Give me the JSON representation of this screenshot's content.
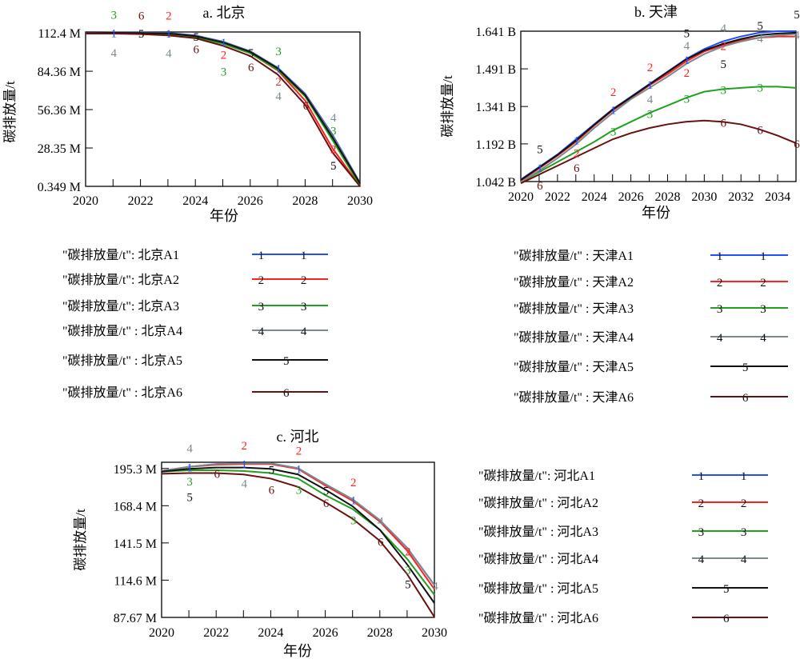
{
  "colors": {
    "A1": "#1f4fff",
    "A2": "#ff2020",
    "A3": "#22a020",
    "A4": "#7a8a90",
    "A5": "#111111",
    "A6": "#6b1010"
  },
  "chart_data": [
    {
      "type": "line",
      "title": "a. 北京",
      "xlabel": "年份",
      "ylabel": "碳排放量/t",
      "x": [
        2020,
        2021,
        2022,
        2023,
        2024,
        2025,
        2026,
        2027,
        2028,
        2029,
        2030
      ],
      "xticks": [
        2020,
        2022,
        2024,
        2026,
        2028,
        2030
      ],
      "xtick_labels": [
        "2020",
        "2022",
        "2024",
        "2026",
        "2028",
        "2030"
      ],
      "yticks": [
        0.349,
        28.35,
        56.36,
        84.36,
        112.4
      ],
      "ytick_labels": [
        "0.349 M",
        "28.35 M",
        "56.36 M",
        "84.36 M",
        "112.4 M"
      ],
      "ylim": [
        0.349,
        113
      ],
      "xlim": [
        2020,
        2030
      ],
      "unit": "M",
      "series": [
        {
          "key": "A1",
          "name": "\"碳排放量/t\": 北京A1",
          "values": [
            112.4,
            112.6,
            112.6,
            112.4,
            110.5,
            106,
            99,
            87,
            68,
            38,
            3
          ]
        },
        {
          "key": "A2",
          "name": "\"碳排放量/t\": 北京A2",
          "values": [
            112,
            112.3,
            112.2,
            111.5,
            109.5,
            104.5,
            97.5,
            85,
            63,
            28,
            0.35
          ]
        },
        {
          "key": "A3",
          "name": "\"碳排放量/t\": 北京A3",
          "values": [
            112,
            112.2,
            112,
            111.5,
            109,
            104.5,
            97.5,
            85.5,
            66,
            34,
            1
          ]
        },
        {
          "key": "A4",
          "name": "\"碳排放量/t\" : 北京A4",
          "values": [
            112.3,
            112.5,
            112.5,
            112.2,
            110.2,
            105.8,
            98.8,
            86.8,
            67.5,
            37,
            2.8
          ]
        },
        {
          "key": "A5",
          "name": "\"碳排放量/t\" : 北京A5",
          "values": [
            112.2,
            112.4,
            112.3,
            112,
            110,
            105.5,
            98.5,
            86.5,
            67,
            36,
            2.5
          ]
        },
        {
          "key": "A6",
          "name": "\"碳排放量/t\" : 北京A6",
          "values": [
            111.8,
            111.8,
            111.5,
            110.5,
            108.5,
            103,
            95.5,
            82,
            60,
            25,
            0.35
          ]
        }
      ]
    },
    {
      "type": "line",
      "title": "b. 天津",
      "xlabel": "年份",
      "ylabel": "碳排放量/t",
      "x": [
        2020,
        2021,
        2022,
        2023,
        2024,
        2025,
        2026,
        2027,
        2028,
        2029,
        2030,
        2031,
        2032,
        2033,
        2034,
        2035
      ],
      "xticks": [
        2020,
        2022,
        2024,
        2026,
        2028,
        2030,
        2032,
        2034
      ],
      "xtick_labels": [
        "2020",
        "2022",
        "2024",
        "2026",
        "2028",
        "2030",
        "2032",
        "2034"
      ],
      "yticks": [
        1.042,
        1.192,
        1.341,
        1.491,
        1.641
      ],
      "ytick_labels": [
        "1.042 B",
        "1.192 B",
        "1.341 B",
        "1.491 B",
        "1.641 B"
      ],
      "ylim": [
        1.042,
        1.641
      ],
      "xlim": [
        2020,
        2035
      ],
      "unit": "B",
      "series": [
        {
          "key": "A1",
          "name": "\"碳排放量/t\" :  天津A1",
          "values": [
            1.05,
            1.1,
            1.15,
            1.21,
            1.27,
            1.33,
            1.38,
            1.43,
            1.48,
            1.53,
            1.57,
            1.6,
            1.62,
            1.635,
            1.641,
            1.641
          ]
        },
        {
          "key": "A2",
          "name": "\"碳排放量/t\" :  天津A2",
          "values": [
            1.045,
            1.095,
            1.145,
            1.2,
            1.265,
            1.325,
            1.375,
            1.425,
            1.47,
            1.52,
            1.56,
            1.585,
            1.605,
            1.615,
            1.62,
            1.62
          ]
        },
        {
          "key": "A3",
          "name": "\"碳排放量/t\" :  天津A3",
          "values": [
            1.04,
            1.08,
            1.12,
            1.16,
            1.2,
            1.245,
            1.28,
            1.315,
            1.345,
            1.375,
            1.4,
            1.41,
            1.415,
            1.42,
            1.42,
            1.415
          ]
        },
        {
          "key": "A4",
          "name": "\"碳排放量/t\" :  天津A4",
          "values": [
            1.04,
            1.085,
            1.135,
            1.19,
            1.255,
            1.315,
            1.37,
            1.415,
            1.46,
            1.51,
            1.55,
            1.58,
            1.6,
            1.615,
            1.625,
            1.63
          ]
        },
        {
          "key": "A5",
          "name": "\"碳排放量/t\" :  天津A5",
          "values": [
            1.048,
            1.098,
            1.148,
            1.205,
            1.268,
            1.328,
            1.378,
            1.428,
            1.478,
            1.528,
            1.565,
            1.59,
            1.61,
            1.625,
            1.632,
            1.635
          ]
        },
        {
          "key": "A6",
          "name": "\"碳排放量/t\" :  天津A6",
          "values": [
            1.035,
            1.07,
            1.105,
            1.14,
            1.175,
            1.21,
            1.235,
            1.255,
            1.27,
            1.28,
            1.285,
            1.28,
            1.27,
            1.25,
            1.225,
            1.195
          ]
        }
      ]
    },
    {
      "type": "line",
      "title": "c. 河北",
      "xlabel": "年份",
      "ylabel": "碳排放量/t",
      "x": [
        2020,
        2021,
        2022,
        2023,
        2024,
        2025,
        2026,
        2027,
        2028,
        2029,
        2030
      ],
      "xticks": [
        2020,
        2022,
        2024,
        2026,
        2028,
        2030
      ],
      "xtick_labels": [
        "2020",
        "2022",
        "2024",
        "2026",
        "2028",
        "2030"
      ],
      "yticks": [
        87.67,
        114.6,
        141.5,
        168.4,
        195.3
      ],
      "ytick_labels": [
        "87.67 M",
        "114.6 M",
        "141.5 M",
        "168.4 M",
        "195.3 M"
      ],
      "ylim": [
        87.67,
        199.8
      ],
      "xlim": [
        2020,
        2030
      ],
      "unit": "M",
      "series": [
        {
          "key": "A1",
          "name": "\"碳排放量/t\": 河北A1",
          "values": [
            193.5,
            196.5,
            198.5,
            199,
            199,
            195.5,
            184,
            173,
            158,
            138,
            111
          ]
        },
        {
          "key": "A2",
          "name": "\"碳排放量/t\" :  河北A2",
          "values": [
            193.5,
            196.5,
            198,
            198.5,
            198.5,
            195,
            183,
            172,
            157,
            136,
            108
          ]
        },
        {
          "key": "A3",
          "name": "\"碳排放量/t\" :  河北A3",
          "values": [
            193,
            194,
            194,
            193.5,
            192,
            188,
            176,
            166,
            151,
            130,
            104
          ]
        },
        {
          "key": "A4",
          "name": "\"碳排放量/t\" :  河北A4",
          "values": [
            193.5,
            196.5,
            198.5,
            199,
            199,
            195.5,
            184,
            173,
            158,
            138,
            111
          ]
        },
        {
          "key": "A5",
          "name": "\"碳排放量/t\" :  河北A5",
          "values": [
            193,
            195,
            196,
            196,
            195,
            191,
            180,
            168,
            151,
            126,
            98
          ]
        },
        {
          "key": "A6",
          "name": "\"碳排放量/t\" :  河北A6",
          "values": [
            191.5,
            192,
            192,
            191,
            188,
            182,
            171,
            159,
            143,
            119,
            88
          ]
        }
      ]
    }
  ]
}
